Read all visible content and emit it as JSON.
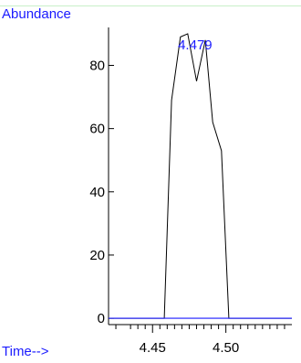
{
  "chart_data": {
    "type": "line",
    "xlabel": "Time-->",
    "ylabel": "Abundance",
    "xlim": [
      4.42,
      4.545
    ],
    "ylim": [
      -2,
      92
    ],
    "x_ticks": [
      4.45,
      4.5
    ],
    "y_ticks": [
      0,
      20,
      40,
      60,
      80
    ],
    "x_tick_labels": [
      "4.45",
      "4.50"
    ],
    "y_tick_labels": [
      "0",
      "20",
      "40",
      "60",
      "80"
    ],
    "minor_x_ticks": [
      4.425,
      4.435,
      4.44,
      4.445,
      4.455,
      4.46,
      4.465,
      4.47,
      4.475,
      4.48,
      4.485,
      4.49,
      4.495,
      4.505,
      4.51,
      4.515,
      4.52,
      4.525,
      4.53,
      4.535,
      4.54
    ],
    "series": [
      {
        "color": "#000000",
        "x": [
          4.42,
          4.458,
          4.463,
          4.469,
          4.474,
          4.48,
          4.486,
          4.491,
          4.497,
          4.502,
          4.507,
          4.545
        ],
        "y": [
          0,
          0,
          69,
          89,
          90,
          75,
          88,
          62,
          53,
          0,
          0,
          0
        ]
      }
    ],
    "baseline": {
      "color": "#1a1aff",
      "y": 0
    },
    "annotations": [
      {
        "text": "4.479",
        "x": 4.479,
        "y": 85,
        "color": "#1a1aff"
      }
    ]
  }
}
